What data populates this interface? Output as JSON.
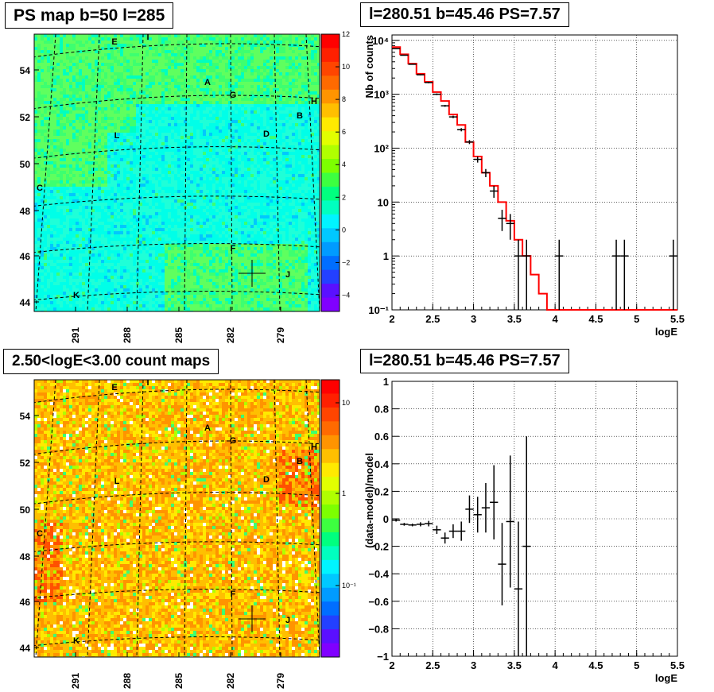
{
  "chart_data": [
    {
      "type": "heatmap",
      "title": "PS map b=50 l=285",
      "x_ticks": [
        "291",
        "288",
        "285",
        "282",
        "279"
      ],
      "y_ticks": [
        "54",
        "52",
        "50",
        "48",
        "46",
        "44"
      ],
      "colorbar_ticks": [
        "12",
        "10",
        "8",
        "6",
        "4",
        "2",
        "0",
        "−2",
        "−4"
      ],
      "colorbar_range": [
        -5,
        12
      ],
      "source_labels": [
        "E",
        "I",
        "A",
        "G",
        "H",
        "B",
        "D",
        "L",
        "C",
        "F",
        "J",
        "K"
      ],
      "marker": "cross"
    },
    {
      "type": "line",
      "title": "l=280.51 b=45.46 PS=7.57",
      "xlabel": "logE",
      "ylabel": "Nb of counts",
      "y_scale": "log",
      "xlim": [
        2,
        5.5
      ],
      "ylim": [
        0.1,
        14000
      ],
      "x_ticks": [
        "2",
        "2.5",
        "3",
        "3.5",
        "4",
        "4.5",
        "5",
        "5.5"
      ],
      "y_ticks": [
        "10⁻¹",
        "1",
        "10",
        "10²",
        "10³",
        "10⁴"
      ],
      "model_color": "#ff0000",
      "model": {
        "edges": [
          2.0,
          2.1,
          2.2,
          2.3,
          2.4,
          2.5,
          2.6,
          2.7,
          2.8,
          2.9,
          3.0,
          3.1,
          3.2,
          3.3,
          3.4,
          3.5,
          3.6,
          3.7,
          3.8,
          3.9,
          4.0,
          5.5
        ],
        "values": [
          7500,
          5500,
          3700,
          2400,
          1700,
          1100,
          750,
          420,
          270,
          130,
          70,
          35,
          20,
          10,
          4.5,
          2,
          1,
          0.45,
          0.2,
          0.1,
          0.1
        ]
      },
      "data": [
        {
          "x": 2.05,
          "y": 7000,
          "lo": 6900,
          "hi": 7100
        },
        {
          "x": 2.15,
          "y": 5300,
          "lo": 5220,
          "hi": 5380
        },
        {
          "x": 2.25,
          "y": 3600,
          "lo": 3530,
          "hi": 3670
        },
        {
          "x": 2.35,
          "y": 2300,
          "lo": 2250,
          "hi": 2350
        },
        {
          "x": 2.45,
          "y": 1650,
          "lo": 1600,
          "hi": 1700
        },
        {
          "x": 2.55,
          "y": 1000,
          "lo": 965,
          "hi": 1035
        },
        {
          "x": 2.65,
          "y": 610,
          "lo": 585,
          "hi": 635
        },
        {
          "x": 2.75,
          "y": 380,
          "lo": 360,
          "hi": 400
        },
        {
          "x": 2.85,
          "y": 220,
          "lo": 205,
          "hi": 235
        },
        {
          "x": 2.95,
          "y": 130,
          "lo": 119,
          "hi": 141
        },
        {
          "x": 3.05,
          "y": 62,
          "lo": 54,
          "hi": 70
        },
        {
          "x": 3.15,
          "y": 35,
          "lo": 29,
          "hi": 41
        },
        {
          "x": 3.25,
          "y": 16,
          "lo": 12,
          "hi": 20
        },
        {
          "x": 3.35,
          "y": 5,
          "lo": 2.9,
          "hi": 7.2
        },
        {
          "x": 3.45,
          "y": 4,
          "lo": 2,
          "hi": 6
        },
        {
          "x": 3.55,
          "y": 1,
          "lo": 0.1,
          "hi": 2
        },
        {
          "x": 3.65,
          "y": 1,
          "lo": 0.1,
          "hi": 2
        },
        {
          "x": 4.05,
          "y": 1,
          "lo": 0.1,
          "hi": 2
        },
        {
          "x": 4.75,
          "y": 1,
          "lo": 0.1,
          "hi": 2
        },
        {
          "x": 4.85,
          "y": 1,
          "lo": 0.1,
          "hi": 2
        },
        {
          "x": 5.45,
          "y": 1,
          "lo": 0.1,
          "hi": 2
        }
      ],
      "bin_half_width": 0.05
    },
    {
      "type": "heatmap",
      "title": "2.50<logE<3.00 count maps",
      "x_ticks": [
        "291",
        "288",
        "285",
        "282",
        "279"
      ],
      "y_ticks": [
        "54",
        "52",
        "50",
        "48",
        "46",
        "44"
      ],
      "colorbar_ticks": [
        "10",
        "1",
        "10⁻¹"
      ],
      "colorbar_scale": "log",
      "source_labels": [
        "E",
        "I",
        "A",
        "G",
        "H",
        "B",
        "D",
        "L",
        "C",
        "F",
        "J",
        "K"
      ],
      "marker": "cross"
    },
    {
      "type": "scatter",
      "title": "l=280.51 b=45.46 PS=7.57",
      "xlabel": "logE",
      "ylabel": "(data-model)/model",
      "xlim": [
        2,
        5.5
      ],
      "ylim": [
        -1,
        1
      ],
      "x_ticks": [
        "2",
        "2.5",
        "3",
        "3.5",
        "4",
        "4.5",
        "5",
        "5.5"
      ],
      "y_ticks": [
        "−1",
        "−0.8",
        "−0.6",
        "−0.4",
        "−0.2",
        "0",
        "0.2",
        "0.4",
        "0.6",
        "0.8",
        "1"
      ],
      "bin_half_width": 0.05,
      "data": [
        {
          "x": 2.05,
          "y": -0.01,
          "err": 0.01
        },
        {
          "x": 2.15,
          "y": -0.04,
          "err": 0.01
        },
        {
          "x": 2.25,
          "y": -0.045,
          "err": 0.01
        },
        {
          "x": 2.35,
          "y": -0.04,
          "err": 0.015
        },
        {
          "x": 2.45,
          "y": -0.035,
          "err": 0.02
        },
        {
          "x": 2.55,
          "y": -0.08,
          "err": 0.03
        },
        {
          "x": 2.65,
          "y": -0.14,
          "err": 0.04
        },
        {
          "x": 2.75,
          "y": -0.09,
          "err": 0.05
        },
        {
          "x": 2.85,
          "y": -0.09,
          "err": 0.07
        },
        {
          "x": 2.95,
          "y": 0.07,
          "err": 0.1
        },
        {
          "x": 3.05,
          "y": 0.03,
          "err": 0.13
        },
        {
          "x": 3.15,
          "y": 0.08,
          "err": 0.18
        },
        {
          "x": 3.25,
          "y": 0.12,
          "err": 0.27
        },
        {
          "x": 3.35,
          "y": -0.33,
          "err": 0.3
        },
        {
          "x": 3.45,
          "y": -0.02,
          "err": 0.48
        },
        {
          "x": 3.55,
          "y": -0.51,
          "err": 0.49
        },
        {
          "x": 3.65,
          "y": -0.2,
          "err": 0.8
        }
      ]
    }
  ]
}
